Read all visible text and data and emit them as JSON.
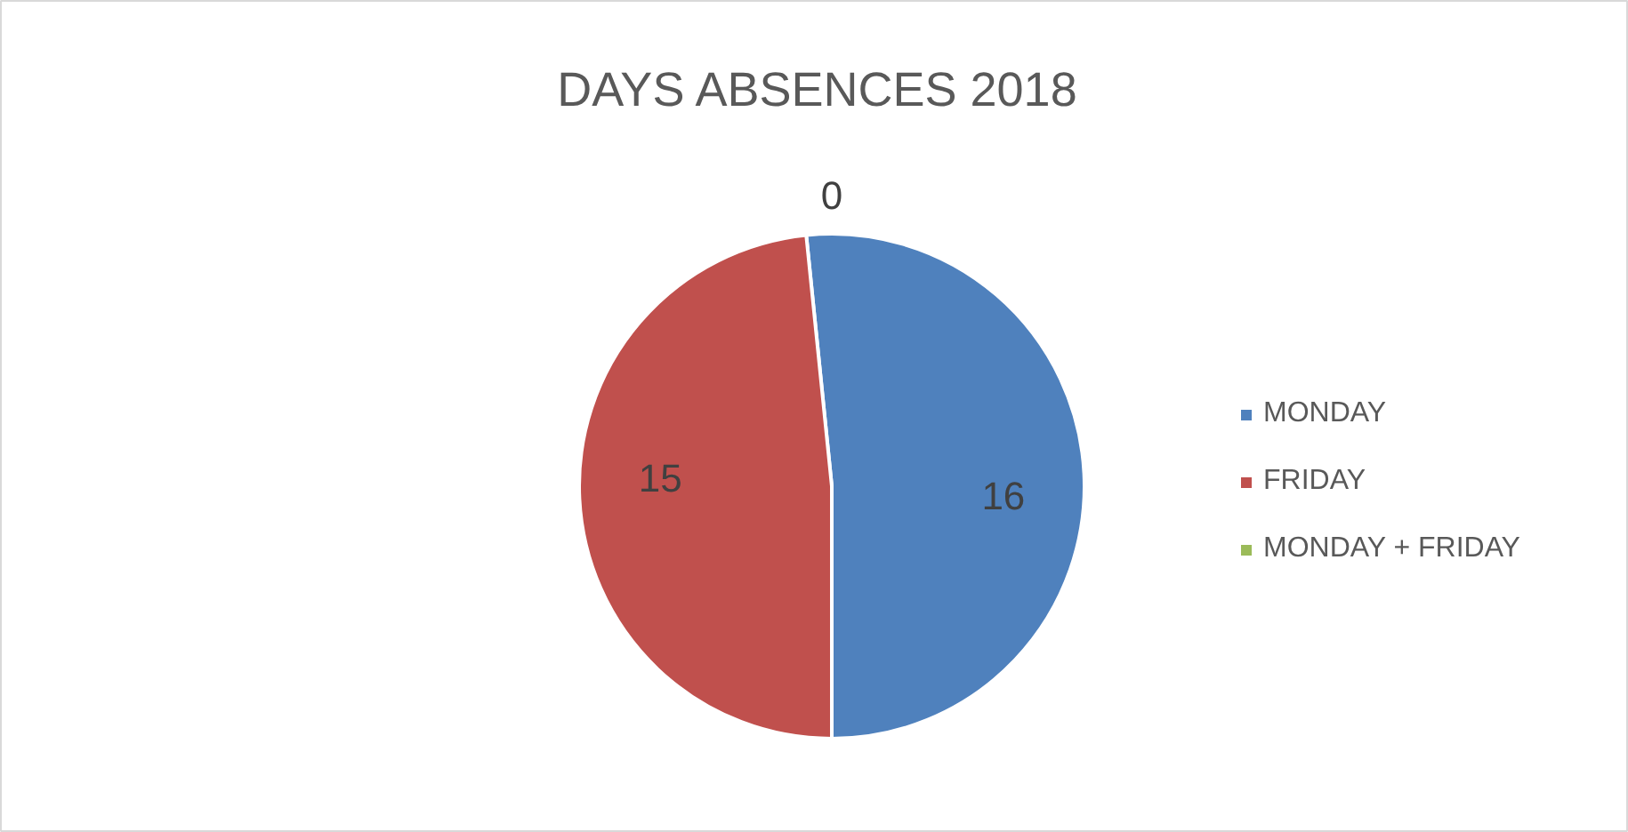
{
  "chart_data": {
    "type": "pie",
    "title": "DAYS ABSENCES 2018",
    "categories": [
      "MONDAY",
      "FRIDAY",
      "MONDAY + FRIDAY"
    ],
    "values": [
      16,
      15,
      0
    ],
    "value_labels": [
      "16",
      "15",
      "0"
    ],
    "colors": [
      "#4f81bd",
      "#c0504d",
      "#9bbb59"
    ],
    "legend": "right"
  }
}
